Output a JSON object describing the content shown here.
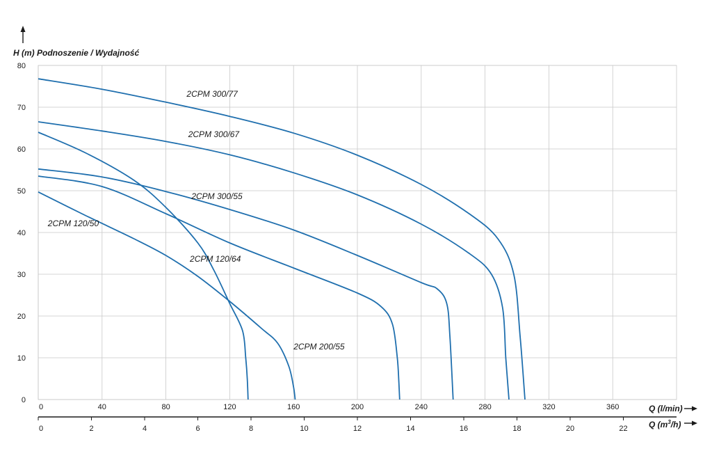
{
  "chart_data": {
    "type": "line",
    "ytitle_unit": "H (m)",
    "ytitle": "Podnoszenie / Wydajność",
    "xlabel_primary": "Q (l/min)",
    "xlabel_secondary_base": "Q (m",
    "xlabel_secondary_sup": "3",
    "xlabel_secondary_end": "/h)",
    "ylim": [
      0,
      80
    ],
    "xlim": [
      0,
      400
    ],
    "yticks": [
      0,
      10,
      20,
      30,
      40,
      50,
      60,
      70,
      80
    ],
    "xticks_primary": [
      0,
      40,
      80,
      120,
      160,
      200,
      240,
      280,
      320,
      360
    ],
    "xticks_secondary": [
      0,
      2,
      4,
      6,
      8,
      10,
      12,
      14,
      16,
      18,
      20,
      22
    ],
    "grid": true,
    "line_color": "#1f6fae",
    "series": [
      {
        "name": "2CPM 300/77",
        "points": [
          [
            0,
            76.8
          ],
          [
            40,
            74.3
          ],
          [
            80,
            71.2
          ],
          [
            120,
            67.8
          ],
          [
            160,
            63.8
          ],
          [
            200,
            58.5
          ],
          [
            240,
            51.5
          ],
          [
            270,
            44.5
          ],
          [
            288,
            38.5
          ],
          [
            298,
            30
          ],
          [
            302,
            15
          ],
          [
            305,
            0
          ]
        ]
      },
      {
        "name": "2CPM 300/67",
        "points": [
          [
            0,
            66.5
          ],
          [
            40,
            64.3
          ],
          [
            80,
            61.8
          ],
          [
            120,
            58.6
          ],
          [
            160,
            54.3
          ],
          [
            200,
            49
          ],
          [
            240,
            42
          ],
          [
            270,
            35
          ],
          [
            284,
            30
          ],
          [
            291,
            22
          ],
          [
            293,
            10
          ],
          [
            295,
            0
          ]
        ]
      },
      {
        "name": "2CPM 300/55",
        "points": [
          [
            0,
            55.2
          ],
          [
            40,
            53.3
          ],
          [
            80,
            49.8
          ],
          [
            120,
            45.5
          ],
          [
            160,
            40.6
          ],
          [
            200,
            34.5
          ],
          [
            240,
            28
          ],
          [
            250,
            26.5
          ],
          [
            256,
            23
          ],
          [
            258,
            15
          ],
          [
            260,
            0
          ]
        ]
      },
      {
        "name": "2CPM 120/64",
        "points": [
          [
            0,
            64
          ],
          [
            30,
            59
          ],
          [
            60,
            52.5
          ],
          [
            80,
            46
          ],
          [
            100,
            37.5
          ],
          [
            110,
            31
          ],
          [
            120,
            23
          ],
          [
            128,
            16.5
          ],
          [
            130,
            10
          ],
          [
            131,
            5
          ],
          [
            131.5,
            0
          ]
        ]
      },
      {
        "name": "2CPM 200/55",
        "points": [
          [
            0,
            53.5
          ],
          [
            40,
            51
          ],
          [
            80,
            44.5
          ],
          [
            120,
            37.5
          ],
          [
            160,
            31.5
          ],
          [
            200,
            25.5
          ],
          [
            215,
            22.2
          ],
          [
            222,
            18
          ],
          [
            225,
            10
          ],
          [
            226,
            4
          ],
          [
            226.5,
            0
          ]
        ]
      },
      {
        "name": "2CPM 120/50",
        "points": [
          [
            0,
            49.7
          ],
          [
            30,
            44
          ],
          [
            60,
            38.5
          ],
          [
            80,
            34.5
          ],
          [
            100,
            29.5
          ],
          [
            120,
            23.5
          ],
          [
            140,
            17
          ],
          [
            150,
            13.5
          ],
          [
            157,
            8
          ],
          [
            160,
            3
          ],
          [
            161,
            0
          ]
        ]
      }
    ],
    "labels": [
      {
        "text": "2CPM 300/77",
        "x": 93,
        "y": 72.5
      },
      {
        "text": "2CPM 300/67",
        "x": 94,
        "y": 62.8
      },
      {
        "text": "2CPM 300/55",
        "x": 96,
        "y": 48
      },
      {
        "text": "2CPM 120/64",
        "x": 95,
        "y": 33
      },
      {
        "text": "2CPM 200/55",
        "x": 160,
        "y": 12
      },
      {
        "text": "2CPM 120/50",
        "x": 6,
        "y": 41.5
      }
    ]
  }
}
